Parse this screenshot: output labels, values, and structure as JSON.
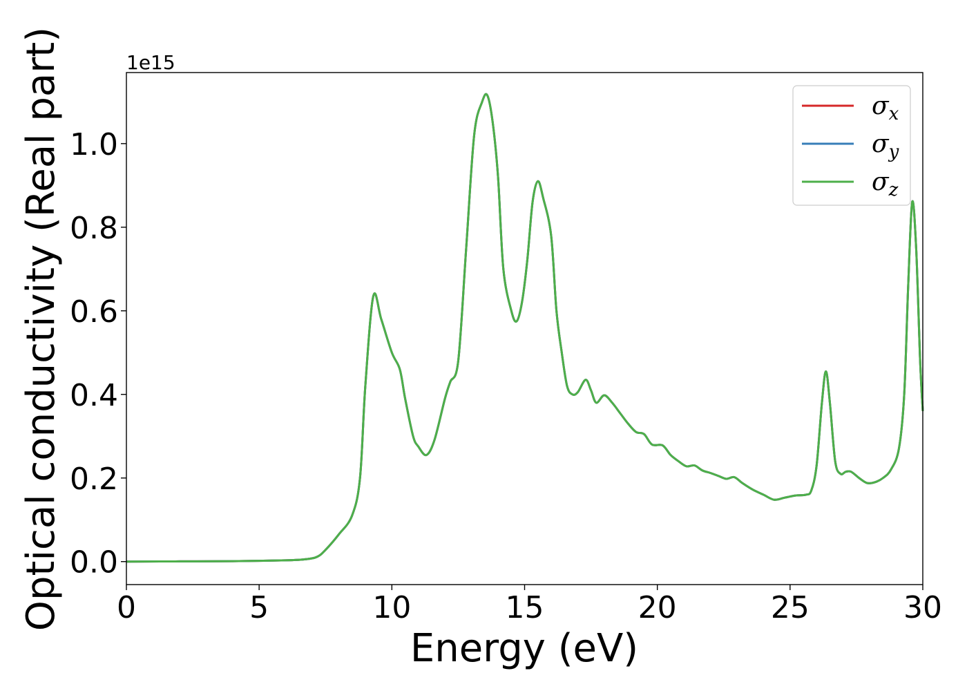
{
  "chart_data": {
    "type": "line",
    "title": "",
    "xlabel": "Energy (eV)",
    "ylabel": "Optical conductivity (Real part)",
    "y_offset_label": "1e15",
    "xlim": [
      0,
      30
    ],
    "ylim": [
      -0.055,
      1.17
    ],
    "xticks": [
      0,
      5,
      10,
      15,
      20,
      25,
      30
    ],
    "yticks": [
      0.0,
      0.2,
      0.4,
      0.6,
      0.8,
      1.0
    ],
    "xtick_labels": [
      "0",
      "5",
      "10",
      "15",
      "20",
      "25",
      "30"
    ],
    "ytick_labels": [
      "0.0",
      "0.2",
      "0.4",
      "0.6",
      "0.8",
      "1.0"
    ],
    "grid": false,
    "legend_position": "top-right",
    "x": [
      0,
      2,
      4,
      6,
      6.8,
      7.2,
      7.5,
      8.0,
      8.5,
      8.8,
      9.0,
      9.3,
      9.6,
      10.0,
      10.3,
      10.5,
      10.8,
      11.0,
      11.3,
      11.6,
      12.0,
      12.2,
      12.5,
      12.8,
      13.1,
      13.4,
      13.6,
      13.8,
      14.0,
      14.2,
      14.5,
      14.7,
      14.9,
      15.1,
      15.3,
      15.5,
      15.7,
      16.0,
      16.2,
      16.4,
      16.6,
      16.8,
      17.0,
      17.3,
      17.5,
      17.7,
      18.0,
      18.3,
      18.6,
      18.9,
      19.2,
      19.5,
      19.8,
      20.2,
      20.5,
      20.8,
      21.1,
      21.4,
      21.7,
      22.0,
      22.3,
      22.6,
      22.9,
      23.2,
      23.6,
      24.0,
      24.4,
      24.8,
      25.2,
      25.6,
      25.8,
      26.0,
      26.2,
      26.35,
      26.5,
      26.7,
      26.9,
      27.1,
      27.3,
      27.6,
      27.9,
      28.2,
      28.5,
      28.8,
      29.1,
      29.3,
      29.45,
      29.6,
      29.75,
      29.9,
      30.0
    ],
    "series": [
      {
        "name": "σx",
        "color": "#d62728",
        "values": [
          0,
          0.0005,
          0.001,
          0.003,
          0.006,
          0.012,
          0.028,
          0.065,
          0.11,
          0.2,
          0.42,
          0.635,
          0.58,
          0.5,
          0.46,
          0.39,
          0.3,
          0.275,
          0.255,
          0.29,
          0.39,
          0.43,
          0.48,
          0.75,
          1.02,
          1.1,
          1.115,
          1.05,
          0.92,
          0.7,
          0.6,
          0.575,
          0.62,
          0.72,
          0.86,
          0.91,
          0.87,
          0.78,
          0.6,
          0.5,
          0.42,
          0.4,
          0.405,
          0.435,
          0.41,
          0.38,
          0.398,
          0.38,
          0.355,
          0.33,
          0.31,
          0.305,
          0.28,
          0.278,
          0.255,
          0.24,
          0.228,
          0.23,
          0.218,
          0.212,
          0.205,
          0.198,
          0.202,
          0.188,
          0.172,
          0.16,
          0.148,
          0.153,
          0.158,
          0.16,
          0.17,
          0.23,
          0.38,
          0.455,
          0.38,
          0.24,
          0.21,
          0.215,
          0.215,
          0.2,
          0.188,
          0.19,
          0.2,
          0.22,
          0.27,
          0.4,
          0.66,
          0.86,
          0.75,
          0.48,
          0.36
        ]
      },
      {
        "name": "σy",
        "color": "#377eb8",
        "values": [
          0,
          0.0005,
          0.001,
          0.003,
          0.006,
          0.012,
          0.028,
          0.065,
          0.11,
          0.2,
          0.42,
          0.635,
          0.58,
          0.5,
          0.46,
          0.39,
          0.3,
          0.275,
          0.255,
          0.29,
          0.39,
          0.43,
          0.48,
          0.75,
          1.02,
          1.1,
          1.115,
          1.05,
          0.92,
          0.7,
          0.6,
          0.575,
          0.62,
          0.72,
          0.86,
          0.91,
          0.87,
          0.78,
          0.6,
          0.5,
          0.42,
          0.4,
          0.405,
          0.435,
          0.41,
          0.38,
          0.398,
          0.38,
          0.355,
          0.33,
          0.31,
          0.305,
          0.28,
          0.278,
          0.255,
          0.24,
          0.228,
          0.23,
          0.218,
          0.212,
          0.205,
          0.198,
          0.202,
          0.188,
          0.172,
          0.16,
          0.148,
          0.153,
          0.158,
          0.16,
          0.17,
          0.23,
          0.38,
          0.455,
          0.38,
          0.24,
          0.21,
          0.215,
          0.215,
          0.2,
          0.188,
          0.19,
          0.2,
          0.22,
          0.27,
          0.4,
          0.66,
          0.86,
          0.75,
          0.48,
          0.36
        ]
      },
      {
        "name": "σz",
        "color": "#4daf4a",
        "values": [
          0,
          0.0005,
          0.001,
          0.003,
          0.006,
          0.012,
          0.028,
          0.065,
          0.11,
          0.2,
          0.42,
          0.635,
          0.58,
          0.5,
          0.46,
          0.39,
          0.3,
          0.275,
          0.255,
          0.29,
          0.39,
          0.43,
          0.48,
          0.75,
          1.02,
          1.1,
          1.115,
          1.05,
          0.92,
          0.7,
          0.6,
          0.575,
          0.62,
          0.72,
          0.86,
          0.91,
          0.87,
          0.78,
          0.6,
          0.5,
          0.42,
          0.4,
          0.405,
          0.435,
          0.41,
          0.38,
          0.398,
          0.38,
          0.355,
          0.33,
          0.31,
          0.305,
          0.28,
          0.278,
          0.255,
          0.24,
          0.228,
          0.23,
          0.218,
          0.212,
          0.205,
          0.198,
          0.202,
          0.188,
          0.172,
          0.16,
          0.148,
          0.153,
          0.158,
          0.16,
          0.17,
          0.23,
          0.38,
          0.455,
          0.38,
          0.24,
          0.21,
          0.215,
          0.215,
          0.2,
          0.188,
          0.19,
          0.2,
          0.22,
          0.27,
          0.4,
          0.66,
          0.86,
          0.75,
          0.48,
          0.36
        ]
      }
    ],
    "legend": [
      {
        "symbol": "σ",
        "sub": "x",
        "color": "#d62728"
      },
      {
        "symbol": "σ",
        "sub": "y",
        "color": "#377eb8"
      },
      {
        "symbol": "σ",
        "sub": "z",
        "color": "#4daf4a"
      }
    ]
  }
}
